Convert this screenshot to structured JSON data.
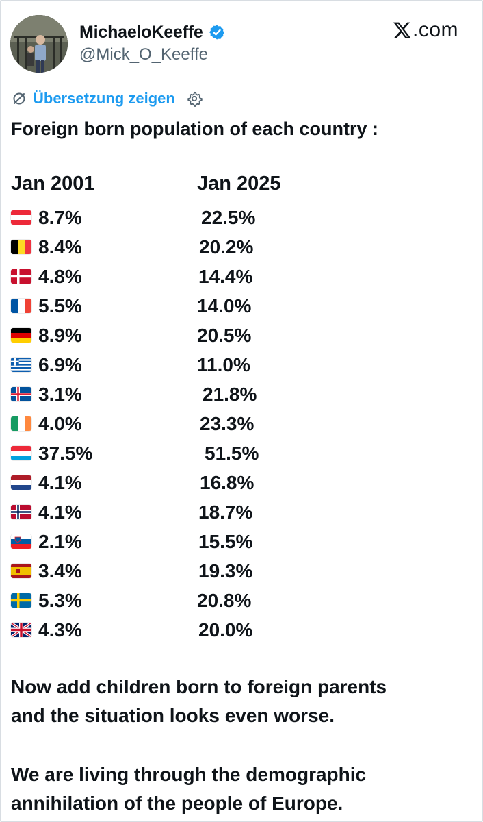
{
  "author": {
    "display_name": "MichaeloKeeffe",
    "handle": "@Mick_O_Keeffe",
    "verified_icon": "verified-badge-icon",
    "avatar_icon": "profile-photo"
  },
  "brand": {
    "domain": ".com",
    "logo_icon": "x-logo-icon"
  },
  "translate": {
    "label": "Übersetzung zeigen",
    "icon": "translate-icon",
    "settings_icon": "gear-icon"
  },
  "tweet": {
    "heading": "Foreign born population of each country :",
    "col_2001": "Jan 2001",
    "col_2025": "Jan 2025",
    "rows": [
      {
        "flag": "austria",
        "v2001": "8.7%",
        "v2025": "22.5%"
      },
      {
        "flag": "belgium",
        "v2001": "8.4%",
        "v2025": "20.2%"
      },
      {
        "flag": "denmark",
        "v2001": "4.8%",
        "v2025": "14.4%"
      },
      {
        "flag": "france",
        "v2001": "5.5%",
        "v2025": "14.0%"
      },
      {
        "flag": "germany",
        "v2001": "8.9%",
        "v2025": "20.5%"
      },
      {
        "flag": "greece",
        "v2001": "6.9%",
        "v2025": "11.0%"
      },
      {
        "flag": "iceland",
        "v2001": "3.1%",
        "v2025": "21.8%"
      },
      {
        "flag": "ireland",
        "v2001": "4.0%",
        "v2025": "23.3%"
      },
      {
        "flag": "luxembourg",
        "v2001": "37.5%",
        "v2025": "51.5%"
      },
      {
        "flag": "netherlands",
        "v2001": "4.1%",
        "v2025": "16.8%"
      },
      {
        "flag": "norway",
        "v2001": "4.1%",
        "v2025": "18.7%"
      },
      {
        "flag": "slovenia",
        "v2001": "2.1%",
        "v2025": "15.5%"
      },
      {
        "flag": "spain",
        "v2001": "3.4%",
        "v2025": "19.3%"
      },
      {
        "flag": "sweden",
        "v2001": "5.3%",
        "v2025": "20.8%"
      },
      {
        "flag": "uk",
        "v2001": "4.3%",
        "v2025": "20.0%"
      }
    ],
    "para1_line1": "Now add children born to foreign parents",
    "para1_line2": "and the situation looks even worse.",
    "para2_line1": "We are living through the demographic",
    "para2_line2": "annihilation of the people of Europe."
  },
  "colors": {
    "link": "#1d9bf0",
    "text": "#0f1419",
    "secondary": "#536471"
  }
}
